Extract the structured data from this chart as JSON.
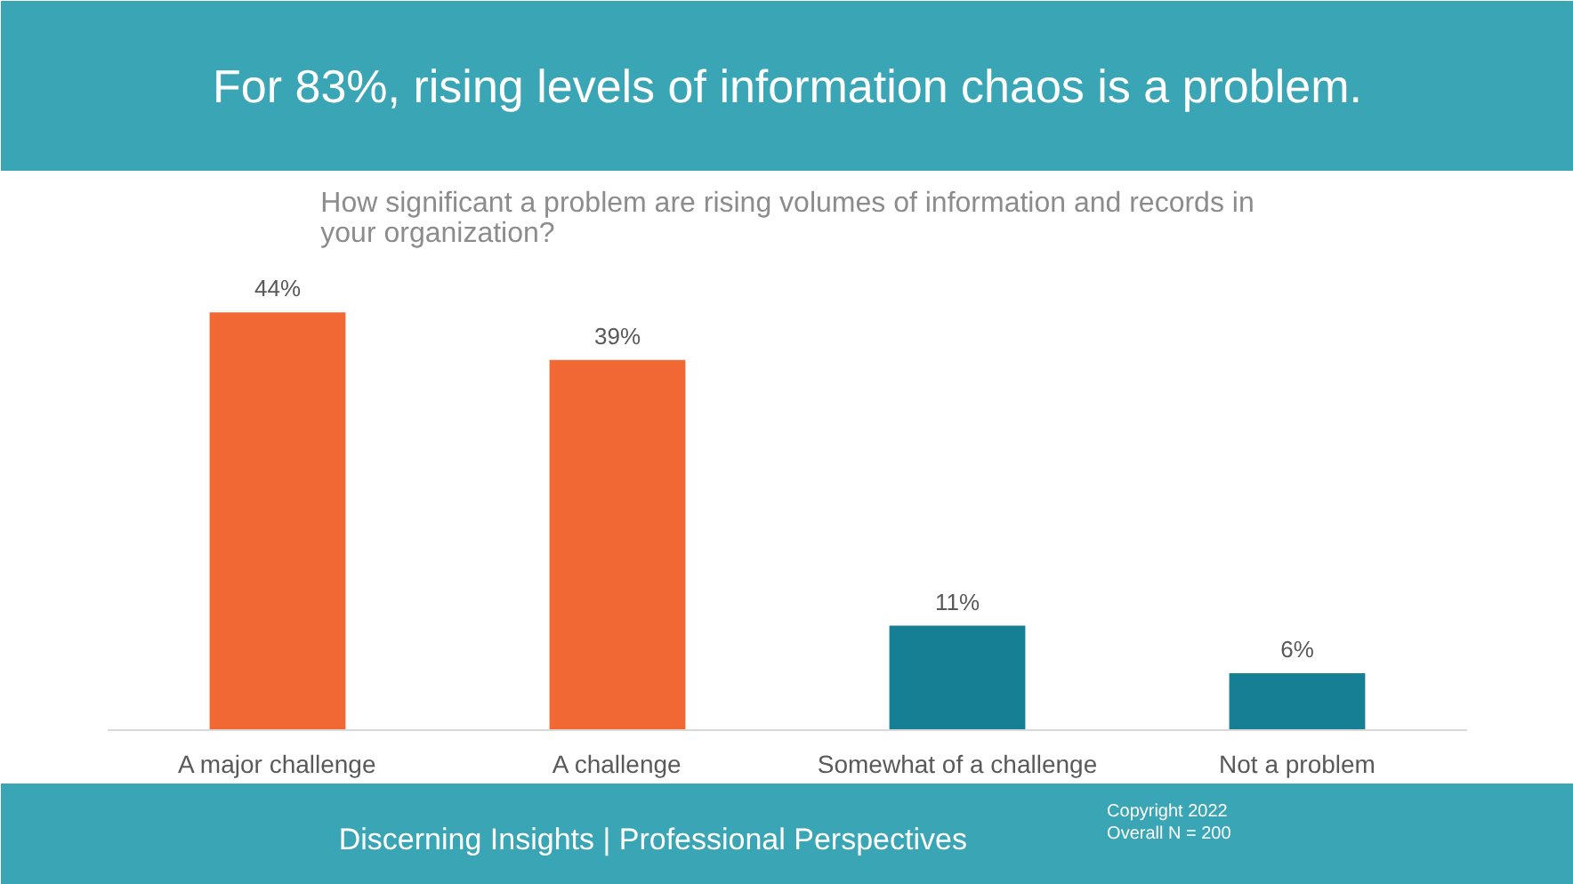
{
  "chart_data": {
    "type": "bar",
    "title": "For 83%, rising levels of information chaos is a problem.",
    "subtitle": "How significant a problem are rising volumes of information and records in\nyour organization?",
    "categories": [
      "A major challenge",
      "A challenge",
      "Somewhat of a challenge",
      "Not a problem"
    ],
    "values": [
      44,
      39,
      11,
      6
    ],
    "colors": [
      "#f26835",
      "#f26835",
      "#167f93",
      "#167f93"
    ],
    "data_labels": true,
    "value_labels": [
      "44%",
      "39%",
      "11%",
      "6%"
    ],
    "grid": false,
    "annotations": [
      "Discerning Insights | Professional Perspectives",
      "Copyright 2022",
      "Overall N = 200"
    ]
  }
}
